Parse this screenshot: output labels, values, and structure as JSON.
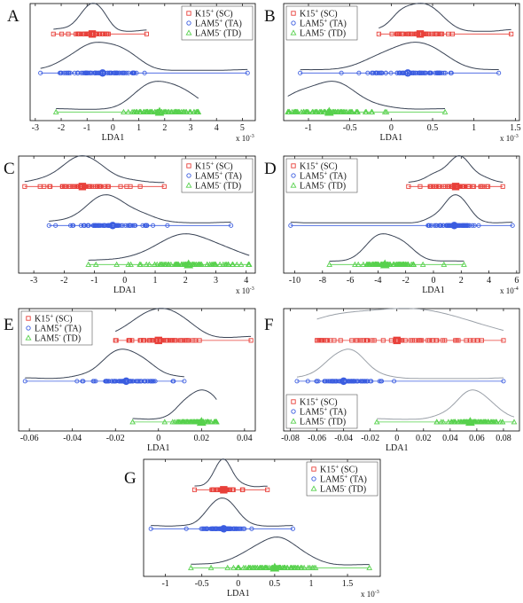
{
  "colors": {
    "SC": "#e8403a",
    "TA": "#3b5de0",
    "TD": "#57d14d",
    "curve": "#3a4456",
    "curve_light": "#9aa0a8",
    "axis": "#000000"
  },
  "chart_data": [
    {
      "type": "density-strip",
      "panel_letter": "A",
      "xlabel": "LDA1",
      "xlim": [
        -3.2,
        5.5
      ],
      "xticks": [
        -3,
        -2,
        -1,
        0,
        1,
        2,
        3,
        4,
        5
      ],
      "xtick_labels": [
        "-3",
        "-2",
        "-1",
        "0",
        "1",
        "2",
        "3",
        "4",
        "5"
      ],
      "exponent_base": "x 10",
      "exponent_power": "-3",
      "legend_position": "top-right",
      "legend": [
        {
          "marker": "square",
          "label": "K15",
          "sup": "+",
          "suffix": " (SC)"
        },
        {
          "marker": "circle",
          "label": "LAM5",
          "sup": "+",
          "suffix": " (TA)"
        },
        {
          "marker": "triangle",
          "label": "LAM5",
          "sup": "-",
          "suffix": " (TD)"
        }
      ],
      "series": [
        {
          "group": "SC",
          "mean": -0.8,
          "sd": 0.45,
          "min": -2.3,
          "max": 1.3,
          "n": 42
        },
        {
          "group": "TA",
          "mean": -0.4,
          "sd": 0.8,
          "min": -2.8,
          "max": 5.2,
          "n": 80
        },
        {
          "group": "TD",
          "mean": 1.8,
          "sd": 0.8,
          "min": -2.2,
          "max": 3.3,
          "n": 80
        }
      ]
    },
    {
      "type": "density-strip",
      "panel_letter": "B",
      "xlabel": "LDA1",
      "xlim": [
        -1.3,
        1.55
      ],
      "xticks": [
        -1,
        -0.5,
        0,
        0.5,
        1,
        1.5
      ],
      "xtick_labels": [
        "-1",
        "-0.5",
        "0",
        "0.5",
        "1",
        "1.5"
      ],
      "exponent_base": "x 10",
      "exponent_power": "-3",
      "legend_position": "top-left",
      "legend": [
        {
          "marker": "square",
          "label": "K15",
          "sup": "+",
          "suffix": " (SC)"
        },
        {
          "marker": "circle",
          "label": "LAM5",
          "sup": "+",
          "suffix": " (TA)"
        },
        {
          "marker": "triangle",
          "label": "LAM5",
          "sup": "-",
          "suffix": " (TD)"
        }
      ],
      "series": [
        {
          "group": "SC",
          "mean": 0.35,
          "sd": 0.18,
          "min": -0.15,
          "max": 1.45,
          "n": 40
        },
        {
          "group": "TA",
          "mean": 0.2,
          "sd": 0.35,
          "min": -1.1,
          "max": 1.3,
          "n": 80
        },
        {
          "group": "TD",
          "mean": -0.75,
          "sd": 0.3,
          "min": -1.25,
          "max": 0.65,
          "n": 80
        }
      ]
    },
    {
      "type": "density-strip",
      "panel_letter": "C",
      "xlabel": "LDA1",
      "xlim": [
        -3.5,
        4.3
      ],
      "xticks": [
        -3,
        -2,
        -1,
        0,
        1,
        2,
        3,
        4
      ],
      "xtick_labels": [
        "-3",
        "-2",
        "-1",
        "0",
        "1",
        "2",
        "3",
        "4"
      ],
      "exponent_base": "x 10",
      "exponent_power": "-3",
      "legend_position": "top-right",
      "legend": [
        {
          "marker": "square",
          "label": "K15",
          "sup": "+",
          "suffix": " (SC)"
        },
        {
          "marker": "circle",
          "label": "LAM5",
          "sup": "+",
          "suffix": " (TA)"
        },
        {
          "marker": "triangle",
          "label": "LAM5",
          "sup": "-",
          "suffix": " (TD)"
        }
      ],
      "series": [
        {
          "group": "SC",
          "mean": -1.4,
          "sd": 0.7,
          "min": -3.3,
          "max": 1.3,
          "n": 50
        },
        {
          "group": "TA",
          "mean": -0.4,
          "sd": 0.65,
          "min": -2.5,
          "max": 3.5,
          "n": 80
        },
        {
          "group": "TD",
          "mean": 2.1,
          "sd": 0.9,
          "min": -1.2,
          "max": 4.1,
          "n": 80
        }
      ]
    },
    {
      "type": "density-strip",
      "panel_letter": "D",
      "xlabel": "LDA1",
      "xlim": [
        -10.8,
        6.2
      ],
      "xticks": [
        -10,
        -8,
        -6,
        -4,
        -2,
        0,
        2,
        4,
        6
      ],
      "xtick_labels": [
        "-10",
        "-8",
        "-6",
        "-4",
        "-2",
        "0",
        "2",
        "4",
        "6"
      ],
      "exponent_base": "x 10",
      "exponent_power": "-4",
      "legend_position": "top-left",
      "legend": [
        {
          "marker": "square",
          "label": "K15",
          "sup": "+",
          "suffix": " (SC)"
        },
        {
          "marker": "circle",
          "label": "LAM5",
          "sup": "+",
          "suffix": " (TA)"
        },
        {
          "marker": "triangle",
          "label": "LAM5",
          "sup": "-",
          "suffix": " (TD)"
        }
      ],
      "series": [
        {
          "group": "SC",
          "mean": 1.6,
          "sd": 1.0,
          "min": -1.8,
          "max": 5.0,
          "n": 50
        },
        {
          "group": "TA",
          "mean": 1.5,
          "sd": 0.9,
          "min": -10.3,
          "max": 5.7,
          "n": 80
        },
        {
          "group": "TD",
          "mean": -3.5,
          "sd": 1.3,
          "min": -7.5,
          "max": 2.2,
          "n": 80
        }
      ]
    },
    {
      "type": "density-strip",
      "panel_letter": "E",
      "xlabel": "LDA1",
      "xlim": [
        -0.065,
        0.045
      ],
      "xticks": [
        -0.06,
        -0.04,
        -0.02,
        0,
        0.02,
        0.04
      ],
      "xtick_labels": [
        "-0.06",
        "-0.04",
        "-0.02",
        "0",
        "0.02",
        "0.04"
      ],
      "exponent_base": "",
      "exponent_power": "",
      "legend_position": "top-left",
      "legend": [
        {
          "marker": "square",
          "label": "K15",
          "sup": "+",
          "suffix": " (SC)"
        },
        {
          "marker": "circle",
          "label": "LAM5",
          "sup": "+",
          "suffix": " (TA)"
        },
        {
          "marker": "triangle",
          "label": "LAM5",
          "sup": "-",
          "suffix": " (TD)"
        }
      ],
      "series": [
        {
          "group": "SC",
          "mean": 0.0,
          "sd": 0.009,
          "min": -0.02,
          "max": 0.043,
          "n": 50
        },
        {
          "group": "TA",
          "mean": -0.015,
          "sd": 0.009,
          "min": -0.062,
          "max": 0.012,
          "n": 80
        },
        {
          "group": "TD",
          "mean": 0.02,
          "sd": 0.006,
          "min": -0.012,
          "max": 0.027,
          "n": 80
        }
      ]
    },
    {
      "type": "density-strip",
      "panel_letter": "F",
      "xlabel": "LDA1",
      "xlim": [
        -0.085,
        0.092
      ],
      "xticks": [
        -0.08,
        -0.06,
        -0.04,
        -0.02,
        0,
        0.02,
        0.04,
        0.06,
        0.08
      ],
      "xtick_labels": [
        "-0.08",
        "-0.06",
        "-0.04",
        "-0.02",
        "0",
        "0.02",
        "0.04",
        "0.06",
        "0.08"
      ],
      "exponent_base": "",
      "exponent_power": "",
      "legend_position": "bottom-left",
      "legend": [
        {
          "marker": "square",
          "label": "K15",
          "sup": "+",
          "suffix": " (SC)"
        },
        {
          "marker": "circle",
          "label": "LAM5",
          "sup": "+",
          "suffix": " (TA)"
        },
        {
          "marker": "triangle",
          "label": "LAM5",
          "sup": "-",
          "suffix": " (TD)"
        }
      ],
      "series": [
        {
          "group": "SC",
          "mean": 0.0,
          "sd": 0.04,
          "min": -0.06,
          "max": 0.08,
          "n": 60
        },
        {
          "group": "TA",
          "mean": -0.04,
          "sd": 0.012,
          "min": -0.075,
          "max": 0.08,
          "n": 80
        },
        {
          "group": "TD",
          "mean": 0.055,
          "sd": 0.012,
          "min": -0.015,
          "max": 0.088,
          "n": 80
        }
      ]
    },
    {
      "type": "density-strip",
      "panel_letter": "G",
      "xlabel": "LDA1",
      "xlim": [
        -1.3,
        1.95
      ],
      "xticks": [
        -1,
        -0.5,
        0,
        0.5,
        1,
        1.5
      ],
      "xtick_labels": [
        "-1",
        "-0.5",
        "0",
        "0.5",
        "1",
        "1.5"
      ],
      "exponent_base": "x 10",
      "exponent_power": "-3",
      "legend_position": "top-right",
      "legend": [
        {
          "marker": "square",
          "label": "K15",
          "sup": "+",
          "suffix": " (SC)"
        },
        {
          "marker": "circle",
          "label": "LAM5",
          "sup": "+",
          "suffix": " (TA)"
        },
        {
          "marker": "triangle",
          "label": "LAM5",
          "sup": "-",
          "suffix": " (TD)"
        }
      ],
      "series": [
        {
          "group": "SC",
          "mean": -0.2,
          "sd": 0.15,
          "min": -0.6,
          "max": 0.4,
          "n": 40
        },
        {
          "group": "TA",
          "mean": -0.2,
          "sd": 0.18,
          "min": -1.2,
          "max": 0.75,
          "n": 80
        },
        {
          "group": "TD",
          "mean": 0.5,
          "sd": 0.3,
          "min": -0.65,
          "max": 1.8,
          "n": 80
        }
      ]
    }
  ]
}
